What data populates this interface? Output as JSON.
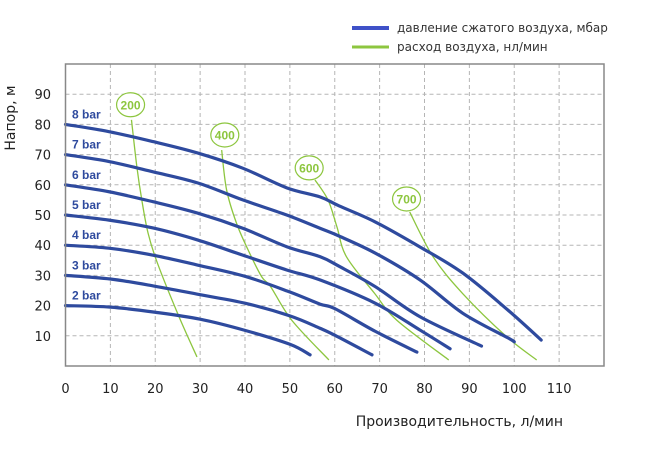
{
  "chart_data": {
    "type": "line",
    "title": "",
    "xlabel": "Производительность, л/мин",
    "ylabel": "Напор, м",
    "xlim": [
      0,
      120
    ],
    "ylim": [
      0,
      100
    ],
    "xticks": [
      0,
      10,
      20,
      30,
      40,
      50,
      60,
      70,
      80,
      90,
      100,
      110
    ],
    "yticks": [
      10,
      20,
      30,
      40,
      50,
      60,
      70,
      80,
      90
    ],
    "grid": true,
    "legend_position": "top-right",
    "legend": [
      {
        "label": "давление сжатого воздуха, мбар",
        "color": "#3F51C8"
      },
      {
        "label": "расход воздуха, нл/мин",
        "color": "#8DC63F"
      }
    ],
    "colors": {
      "pressure": "#2E4A9E",
      "air": "#8DC63F"
    },
    "pressure_series": [
      {
        "name": "8 bar",
        "points": [
          [
            0,
            80
          ],
          [
            9.7,
            77.6
          ],
          [
            19.5,
            74.3
          ],
          [
            29.5,
            70.5
          ],
          [
            39.5,
            65.5
          ],
          [
            49.3,
            59
          ],
          [
            56.7,
            56
          ],
          [
            61,
            53
          ],
          [
            68.9,
            47.8
          ],
          [
            78.9,
            39.5
          ],
          [
            88.5,
            30.8
          ],
          [
            98.6,
            18.5
          ],
          [
            106,
            8.6
          ]
        ]
      },
      {
        "name": "7 bar",
        "points": [
          [
            0,
            70
          ],
          [
            9.7,
            67.7
          ],
          [
            19.5,
            64.3
          ],
          [
            29.5,
            60.6
          ],
          [
            39.5,
            55
          ],
          [
            49.3,
            50
          ],
          [
            56.7,
            45.6
          ],
          [
            61,
            43
          ],
          [
            69,
            37.4
          ],
          [
            79,
            28.5
          ],
          [
            88.5,
            17.5
          ],
          [
            98.6,
            9.3
          ],
          [
            100,
            8
          ]
        ]
      },
      {
        "name": "6 bar",
        "points": [
          [
            0,
            60
          ],
          [
            9.7,
            57.7
          ],
          [
            19.5,
            54.4
          ],
          [
            29.5,
            50.6
          ],
          [
            39.5,
            45.6
          ],
          [
            49.3,
            39.5
          ],
          [
            56.7,
            36.2
          ],
          [
            61,
            33
          ],
          [
            69,
            26.3
          ],
          [
            79,
            16.3
          ],
          [
            92.7,
            6.6
          ]
        ]
      },
      {
        "name": "5 bar",
        "points": [
          [
            0,
            50
          ],
          [
            9.7,
            48.3
          ],
          [
            19.5,
            45.7
          ],
          [
            29.5,
            41.7
          ],
          [
            39.5,
            36.7
          ],
          [
            49.3,
            31.8
          ],
          [
            56.7,
            28.5
          ],
          [
            69,
            20.8
          ],
          [
            79,
            11.9
          ],
          [
            85.7,
            5.7
          ]
        ]
      },
      {
        "name": "4 bar",
        "points": [
          [
            0,
            40
          ],
          [
            9.7,
            39
          ],
          [
            19.5,
            36.7
          ],
          [
            29.5,
            33.4
          ],
          [
            40,
            29.7
          ],
          [
            50,
            24.5
          ],
          [
            56.7,
            20.5
          ],
          [
            60,
            19
          ],
          [
            69,
            11.5
          ],
          [
            78.3,
            4.6
          ]
        ]
      },
      {
        "name": "3 bar",
        "points": [
          [
            0,
            30
          ],
          [
            10,
            28.8
          ],
          [
            20,
            26.4
          ],
          [
            30,
            23.6
          ],
          [
            40,
            20.8
          ],
          [
            50,
            16.6
          ],
          [
            56.7,
            12.5
          ],
          [
            60,
            10.2
          ],
          [
            68.3,
            3.7
          ]
        ]
      },
      {
        "name": "2 bar",
        "points": [
          [
            0,
            20
          ],
          [
            10,
            19.5
          ],
          [
            20,
            17.8
          ],
          [
            30,
            15.5
          ],
          [
            40,
            11.8
          ],
          [
            50,
            7.2
          ],
          [
            54.5,
            3.7
          ]
        ]
      }
    ],
    "air_series": [
      {
        "name": "200",
        "label_at": [
          14.5,
          86.5
        ],
        "points": [
          [
            14.7,
            81.5
          ],
          [
            15.9,
            66
          ],
          [
            17,
            55
          ],
          [
            18.4,
            44
          ],
          [
            20.5,
            34
          ],
          [
            25.3,
            16.3
          ],
          [
            29.3,
            3
          ]
        ]
      },
      {
        "name": "400",
        "label_at": [
          35.5,
          76.5
        ],
        "points": [
          [
            34.8,
            71.5
          ],
          [
            35.9,
            58.3
          ],
          [
            38.1,
            47.3
          ],
          [
            40.7,
            38.4
          ],
          [
            43.7,
            29.6
          ],
          [
            45.7,
            26.3
          ],
          [
            50.4,
            15.2
          ],
          [
            58.7,
            2
          ]
        ]
      },
      {
        "name": "600",
        "label_at": [
          54.3,
          65.6
        ],
        "points": [
          [
            55.6,
            61.6
          ],
          [
            58.5,
            55
          ],
          [
            60.5,
            46
          ],
          [
            62.6,
            36.2
          ],
          [
            68.9,
            24
          ],
          [
            73.8,
            15.2
          ],
          [
            85.4,
            2
          ]
        ]
      },
      {
        "name": "700",
        "label_at": [
          76,
          55.3
        ],
        "points": [
          [
            76.7,
            51
          ],
          [
            81.9,
            36.2
          ],
          [
            88.5,
            24
          ],
          [
            98.3,
            9.7
          ],
          [
            105,
            2
          ]
        ]
      }
    ]
  }
}
